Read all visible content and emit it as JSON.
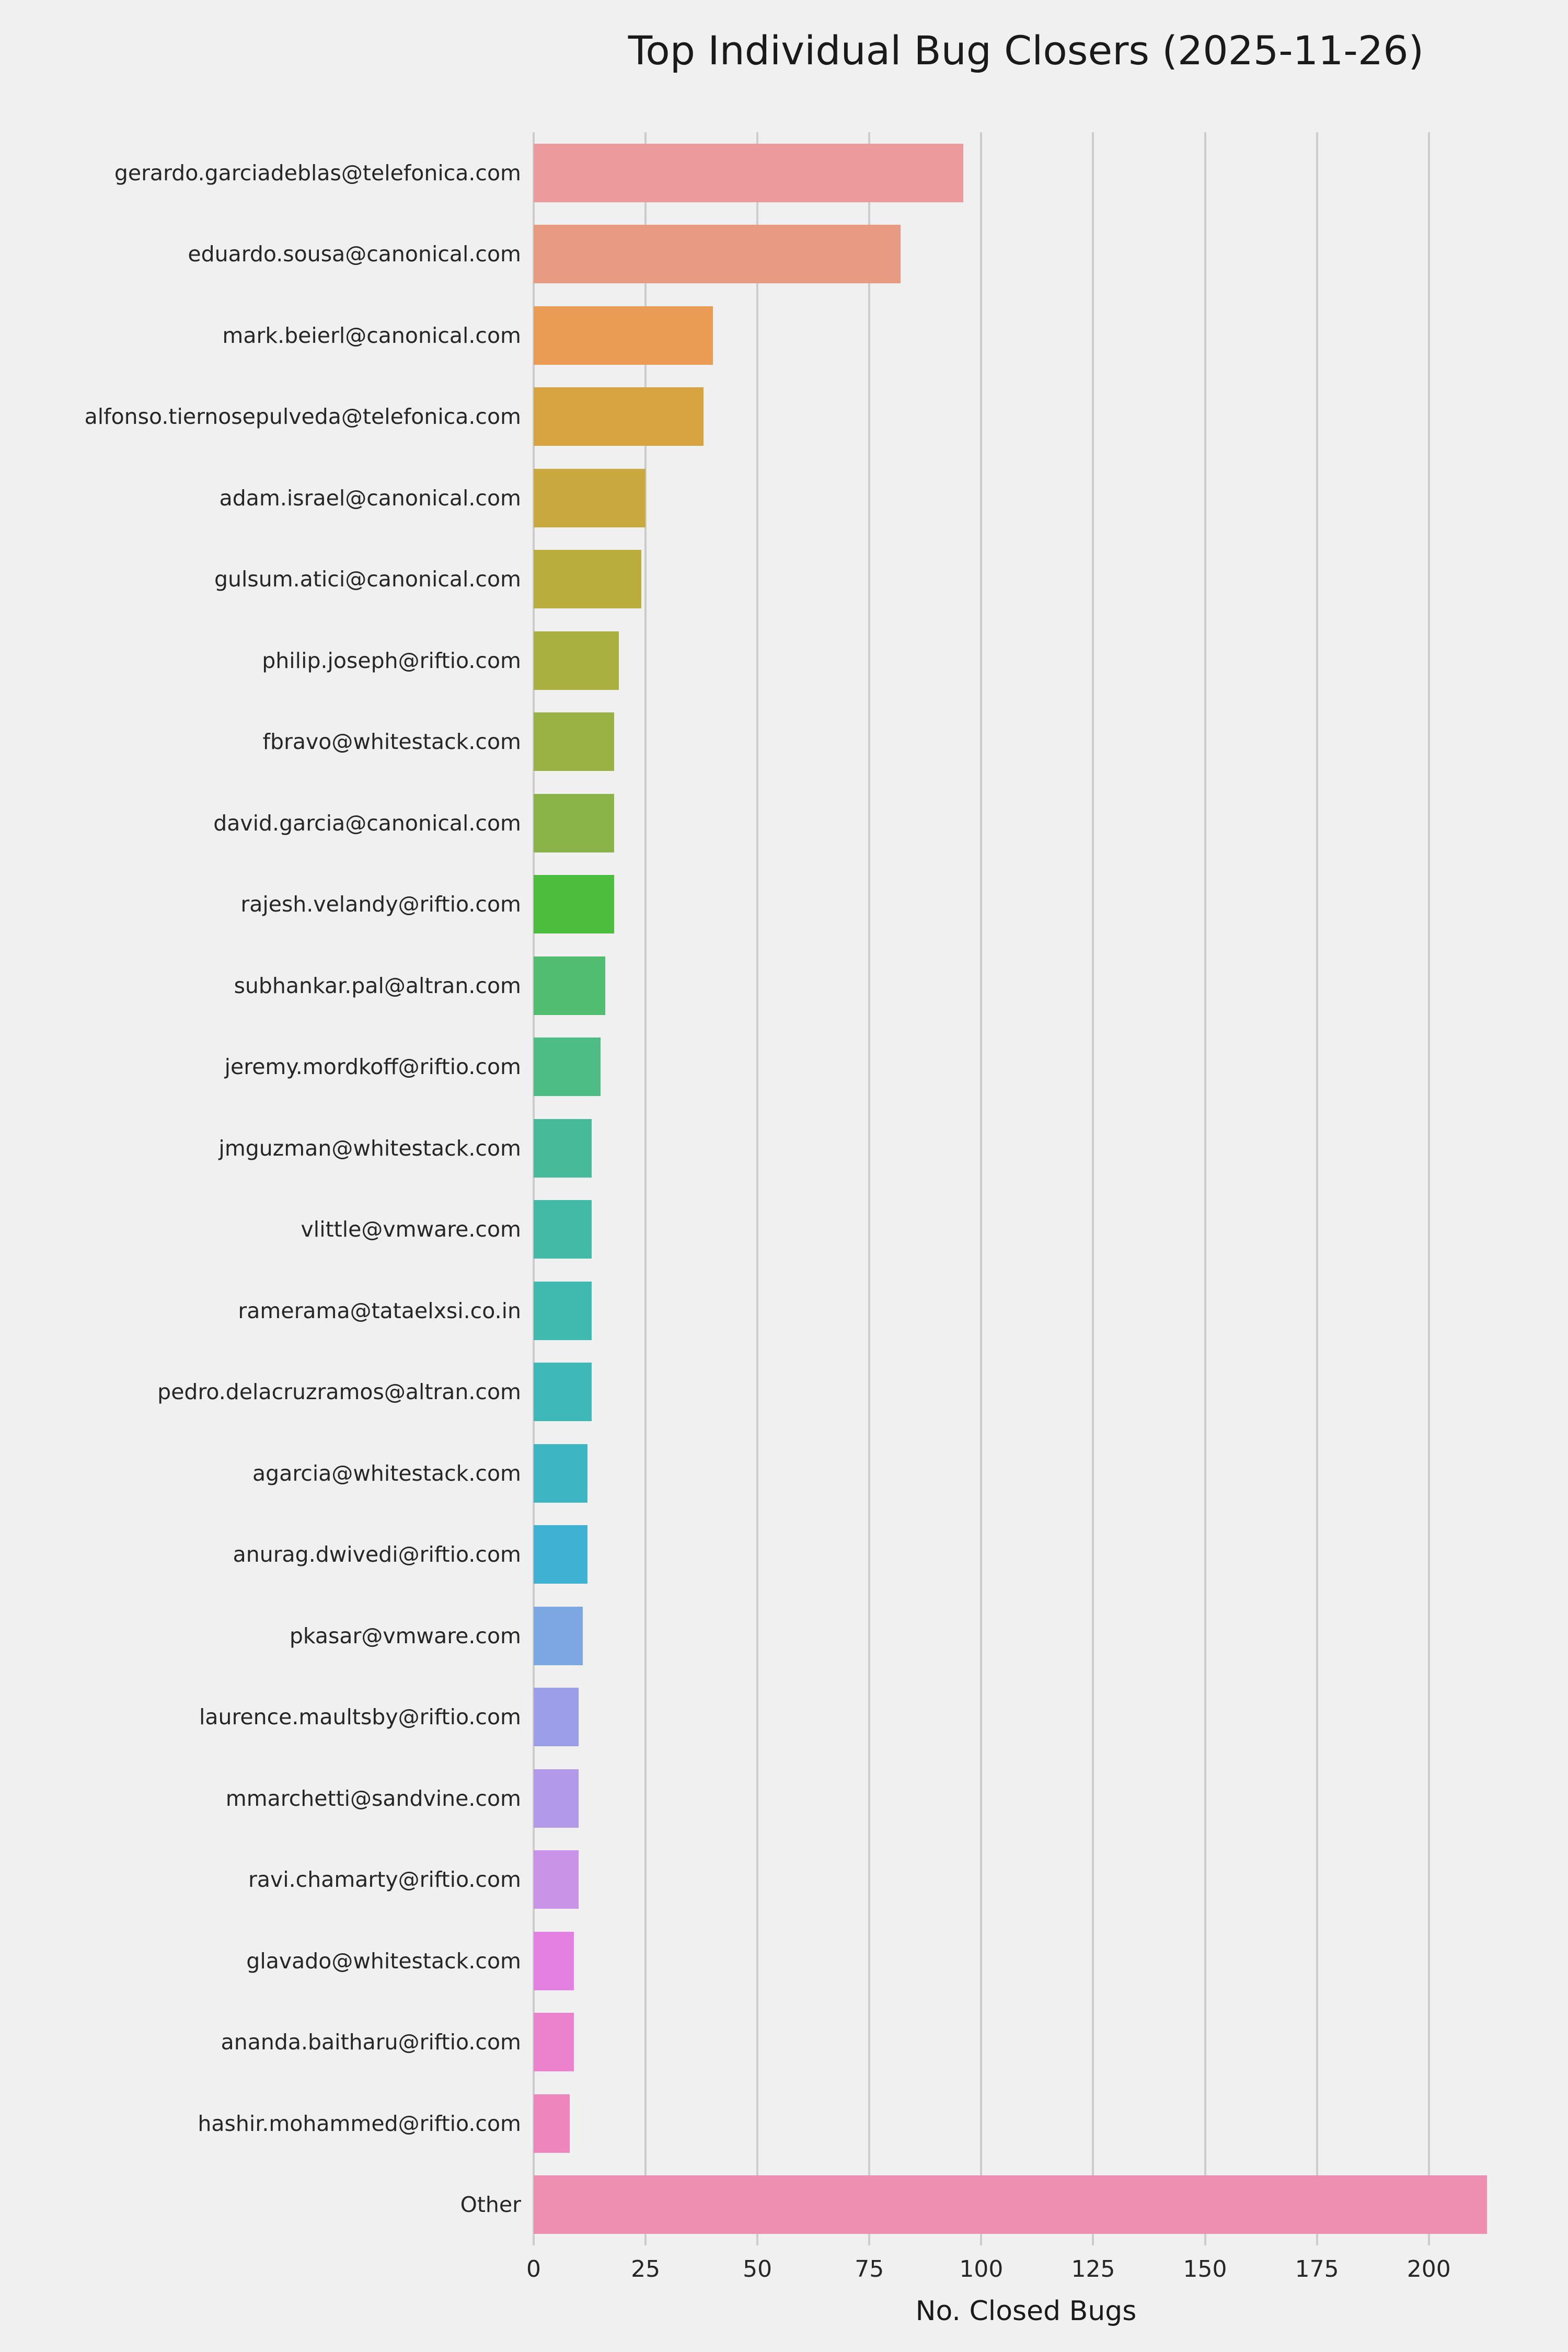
{
  "title": "Top Individual Bug Closers (2025-11-26)",
  "chart_data": {
    "type": "bar",
    "orientation": "horizontal",
    "title": "Top Individual Bug Closers (2025-11-26)",
    "xlabel": "No. Closed Bugs",
    "ylabel": "",
    "xlim": [
      0,
      220
    ],
    "xticks": [
      0,
      25,
      50,
      75,
      100,
      125,
      150,
      175,
      200
    ],
    "grid": true,
    "legend": "none",
    "background_color": "#f0f0f0",
    "gridline_color": "#cdcdcd",
    "categories": [
      "gerardo.garciadeblas@telefonica.com",
      "eduardo.sousa@canonical.com",
      "mark.beierl@canonical.com",
      "alfonso.tiernosepulveda@telefonica.com",
      "adam.israel@canonical.com",
      "gulsum.atici@canonical.com",
      "philip.joseph@riftio.com",
      "fbravo@whitestack.com",
      "david.garcia@canonical.com",
      "rajesh.velandy@riftio.com",
      "subhankar.pal@altran.com",
      "jeremy.mordkoff@riftio.com",
      "jmguzman@whitestack.com",
      "vlittle@vmware.com",
      "ramerama@tataelxsi.co.in",
      "pedro.delacruzramos@altran.com",
      "agarcia@whitestack.com",
      "anurag.dwivedi@riftio.com",
      "pkasar@vmware.com",
      "laurence.maultsby@riftio.com",
      "mmarchetti@sandvine.com",
      "ravi.chamarty@riftio.com",
      "glavado@whitestack.com",
      "ananda.baitharu@riftio.com",
      "hashir.mohammed@riftio.com",
      "Other"
    ],
    "values": [
      96,
      82,
      40,
      38,
      25,
      24,
      19,
      18,
      18,
      18,
      16,
      15,
      13,
      13,
      13,
      13,
      12,
      12,
      11,
      10,
      10,
      10,
      9,
      9,
      8,
      213
    ],
    "colors": [
      "#ed9a9c",
      "#e89a83",
      "#ea9c54",
      "#d8a440",
      "#c9a83d",
      "#b9ad3e",
      "#a9b03f",
      "#9ab244",
      "#8ab348",
      "#4cbd3c",
      "#51bd71",
      "#4dbc85",
      "#47bb99",
      "#43baa5",
      "#40b9ae",
      "#3eb8b8",
      "#3db5c3",
      "#3fb2d4",
      "#7da7e2",
      "#9d9ee9",
      "#b399ea",
      "#c993e8",
      "#e380e2",
      "#ec82cd",
      "#ee86bd",
      "#ee8fb2"
    ]
  }
}
